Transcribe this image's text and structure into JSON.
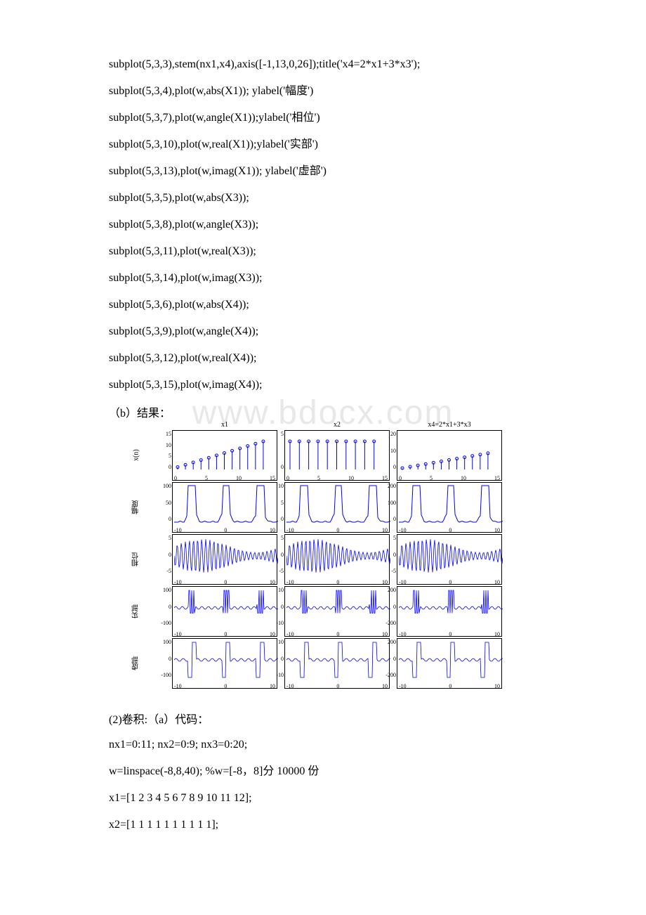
{
  "watermark": "www.bdocx.com",
  "code_block_1": [
    "subplot(5,3,3),stem(nx1,x4),axis([-1,13,0,26]);title('x4=2*x1+3*x3');",
    "subplot(5,3,4),plot(w,abs(X1)); ylabel('幅度')",
    "subplot(5,3,7),plot(w,angle(X1));ylabel('相位')",
    "subplot(5,3,10),plot(w,real(X1));ylabel('实部')",
    "subplot(5,3,13),plot(w,imag(X1)); ylabel('虚部')",
    "subplot(5,3,5),plot(w,abs(X3));",
    "subplot(5,3,8),plot(w,angle(X3));",
    "subplot(5,3,11),plot(w,real(X3));",
    "subplot(5,3,14),plot(w,imag(X3));",
    "subplot(5,3,6),plot(w,abs(X4));",
    "subplot(5,3,9),plot(w,angle(X4));",
    "subplot(5,3,12),plot(w,real(X4));",
    "subplot(5,3,15),plot(w,imag(X4));"
  ],
  "result_label": "（b）结果：",
  "section2_label": "(2)卷积:（a）代码：",
  "code_block_2": [
    "nx1=0:11; nx2=0:9; nx3=0:20;",
    "w=linspace(-8,8,40); %w=[-8，8]分 10000 份",
    "x1=[1 2 3 4 5 6 7 8 9 10 11 12];",
    "x2=[1 1 1 1 1 1 1 1 1 1];"
  ],
  "figure": {
    "line_color": "#0000ff",
    "axis_color": "#000000",
    "bg_color": "#ffffff",
    "row_labels": [
      "x(n)",
      "幅度",
      "相位",
      "实部",
      "虚部"
    ],
    "col_titles": [
      "x1",
      "x2",
      "x4=2*x1+3*x3"
    ],
    "row1": {
      "panels": [
        {
          "type": "stem",
          "yticks": [
            "15",
            "10",
            "5",
            "0"
          ],
          "xticks": [
            "0",
            "5",
            "10",
            "15"
          ],
          "n": 12,
          "scale": "ramp",
          "ymax": 15
        },
        {
          "type": "stem",
          "yticks": [
            "5",
            "0"
          ],
          "xticks": [
            "0",
            "5",
            "10",
            "15"
          ],
          "n": 10,
          "scale": "flat",
          "ymax": 5
        },
        {
          "type": "stem",
          "yticks": [
            "20",
            "10",
            "0"
          ],
          "xticks": [
            "0",
            "5",
            "10",
            "15"
          ],
          "n": 12,
          "scale": "ramp",
          "ymax": 26
        }
      ]
    },
    "row2": {
      "panels": [
        {
          "type": "abs",
          "yticks": [
            "100",
            "50",
            "0"
          ],
          "xticks": [
            "-10",
            "0",
            "10"
          ]
        },
        {
          "type": "abs",
          "yticks": [
            "10",
            "5",
            "0"
          ],
          "xticks": [
            "-10",
            "0",
            "10"
          ]
        },
        {
          "type": "abs",
          "yticks": [
            "200",
            "100",
            "0"
          ],
          "xticks": [
            "-10",
            "0",
            "10"
          ]
        }
      ]
    },
    "row3": {
      "panels": [
        {
          "type": "phase",
          "yticks": [
            "5",
            "0",
            "-5"
          ],
          "xticks": [
            "-10",
            "0",
            "10"
          ]
        },
        {
          "type": "phase",
          "yticks": [
            "5",
            "0",
            "-5"
          ],
          "xticks": [
            "-10",
            "0",
            "10"
          ]
        },
        {
          "type": "phase",
          "yticks": [
            "5",
            "0",
            "-5"
          ],
          "xticks": [
            "-10",
            "0",
            "10"
          ]
        }
      ]
    },
    "row4": {
      "panels": [
        {
          "type": "real",
          "yticks": [
            "100",
            "0",
            "-100"
          ],
          "xticks": [
            "-10",
            "0",
            "10"
          ]
        },
        {
          "type": "real",
          "yticks": [
            "10",
            "0",
            "-10"
          ],
          "xticks": [
            "-10",
            "0",
            "10"
          ]
        },
        {
          "type": "real",
          "yticks": [
            "200",
            "0",
            "-200"
          ],
          "xticks": [
            "-10",
            "0",
            "10"
          ]
        }
      ]
    },
    "row5": {
      "panels": [
        {
          "type": "imag",
          "yticks": [
            "100",
            "0",
            "-100"
          ],
          "xticks": [
            "-10",
            "0",
            "10"
          ]
        },
        {
          "type": "imag",
          "yticks": [
            "10",
            "0",
            "-10"
          ],
          "xticks": [
            "-10",
            "0",
            "10"
          ]
        },
        {
          "type": "imag",
          "yticks": [
            "200",
            "0",
            "-200"
          ],
          "xticks": [
            "-10",
            "0",
            "10"
          ]
        }
      ]
    }
  }
}
